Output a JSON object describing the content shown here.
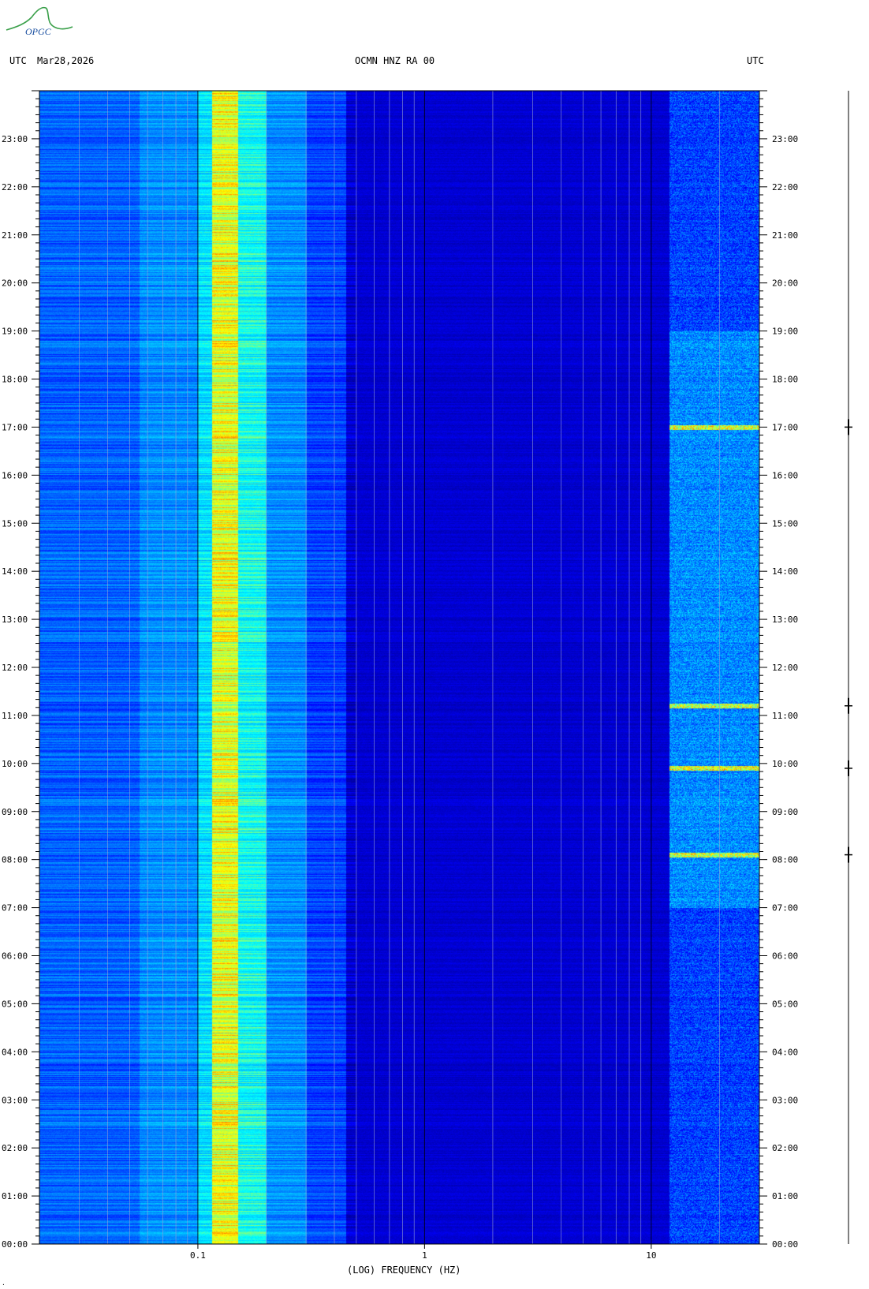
{
  "header": {
    "left_label": "UTC",
    "date": "Mar28,2026",
    "station": "OCMN HNZ RA 00",
    "right_label": "UTC"
  },
  "logo": {
    "text": "OPGC"
  },
  "chart_data": {
    "type": "heatmap",
    "title": "OCMN HNZ RA 00",
    "xlabel": "(LOG) FREQUENCY (HZ)",
    "ylabel": "UTC",
    "x_scale": "log",
    "xlim": [
      0.02,
      30
    ],
    "x_ticks": [
      {
        "value": 0.1,
        "label": "0.1"
      },
      {
        "value": 1,
        "label": "1"
      },
      {
        "value": 10,
        "label": "10"
      }
    ],
    "y_ticks": [
      "00:00",
      "01:00",
      "02:00",
      "03:00",
      "04:00",
      "05:00",
      "06:00",
      "07:00",
      "08:00",
      "09:00",
      "10:00",
      "11:00",
      "12:00",
      "13:00",
      "14:00",
      "15:00",
      "16:00",
      "17:00",
      "18:00",
      "19:00",
      "20:00",
      "21:00",
      "22:00",
      "23:00"
    ],
    "ylim_hours": [
      0,
      24
    ],
    "colormap": [
      "#00008b",
      "#0000ff",
      "#0080ff",
      "#00ffff",
      "#ffff00",
      "#ff0000"
    ],
    "bands": [
      {
        "from_hz": 0.02,
        "to_hz": 0.055,
        "level": 0.35
      },
      {
        "from_hz": 0.055,
        "to_hz": 0.1,
        "level": 0.42
      },
      {
        "from_hz": 0.1,
        "to_hz": 0.115,
        "level": 0.55
      },
      {
        "from_hz": 0.115,
        "to_hz": 0.15,
        "level": 0.78
      },
      {
        "from_hz": 0.15,
        "to_hz": 0.2,
        "level": 0.6
      },
      {
        "from_hz": 0.2,
        "to_hz": 0.3,
        "level": 0.42
      },
      {
        "from_hz": 0.3,
        "to_hz": 0.45,
        "level": 0.3
      },
      {
        "from_hz": 0.45,
        "to_hz": 12,
        "level": 0.12
      },
      {
        "from_hz": 12,
        "to_hz": 30,
        "level": 0.3
      }
    ],
    "events_utc_hours": [
      8.1,
      9.9,
      11.2,
      17.0
    ],
    "trace_color": "#000000"
  },
  "footer": {
    "mark": "."
  }
}
